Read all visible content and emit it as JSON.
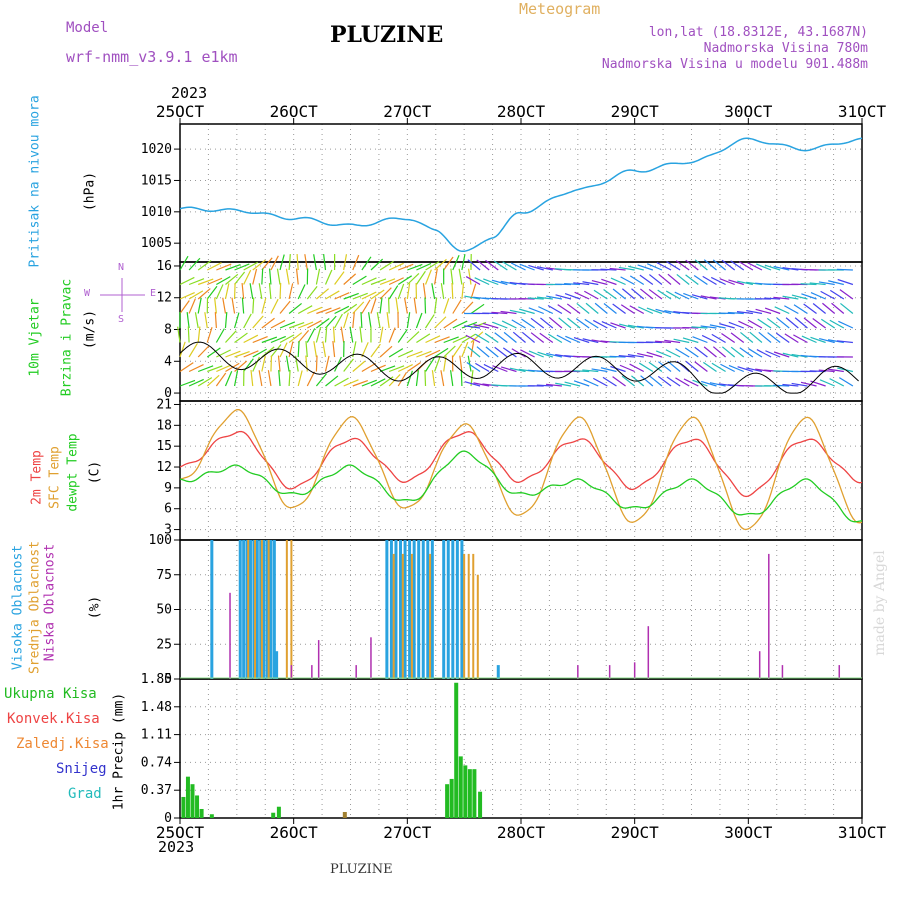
{
  "header": {
    "model_label": "Model",
    "model_name": "wrf-nmm_v3.9.1  e1km",
    "station": "PLUZINE",
    "meteogram_label": "Meteogram",
    "lonlat": "lon,lat (18.8312E, 43.1687N)",
    "elevation": "Nadmorska Visina 780m",
    "model_elevation": "Nadmorska Visina u modelu 901.488m",
    "year_top": "2023",
    "year_bottom": "2023",
    "footer_station": "PLUZINE",
    "credit": "made by Angel"
  },
  "colors": {
    "pressure": "#29a3e0",
    "temp2m": "#ee4444",
    "sfc_temp": "#e0a030",
    "dewpoint": "#22cc22",
    "high_cloud": "#29a3e0",
    "mid_cloud": "#e0a030",
    "low_cloud": "#b030b0",
    "total_precip": "#22bb22",
    "conv_precip": "#ee4444",
    "frozen_precip": "#ee8833",
    "snow": "#3333cc",
    "graupel": "#22bbbb"
  },
  "panel_labels": {
    "pressure": [
      "Pritisak na nivou mora",
      "(hPa)"
    ],
    "wind": [
      "10m Vjetar",
      "Brzina i Pravac",
      "(m/s)"
    ],
    "temp": [
      "2m Temp",
      "SFC Temp",
      "dewpt Temp",
      "(C)"
    ],
    "cloud": [
      "Visoka Oblacnost",
      "Srednja Oblacnost",
      "Niska Oblacnost",
      "(%)"
    ],
    "precip_legend": [
      "Ukupna Kisa",
      "Konvek.Kisa",
      "Zaledj.Kisa",
      "Snijeg",
      "Grad"
    ],
    "precip_unit": "1hr Precip (mm)",
    "compass": "N",
    "compass_dirs": [
      "W",
      "E",
      "S"
    ]
  },
  "chart_data": [
    {
      "type": "line",
      "title": "Pritisak na nivou mora",
      "ylabel": "(hPa)",
      "x": [
        "25OCT 00",
        "25OCT 12",
        "26OCT 00",
        "26OCT 12",
        "27OCT 00",
        "27OCT 06",
        "27OCT 12",
        "27OCT 18",
        "28OCT 00",
        "28OCT 12",
        "29OCT 00",
        "29OCT 12",
        "30OCT 00",
        "30OCT 12",
        "31OCT 00"
      ],
      "series": [
        {
          "values": [
            1010.5,
            1010.2,
            1009.0,
            1007.8,
            1009.0,
            1007.0,
            1003.5,
            1006.0,
            1010.0,
            1013.5,
            1016.5,
            1018.0,
            1021.5,
            1020.0,
            1021.5
          ]
        }
      ],
      "ylim": [
        1002,
        1024
      ],
      "yticks": [
        1005,
        1010,
        1015,
        1020
      ]
    },
    {
      "type": "scatter",
      "title": "10m Vjetar Brzina i Pravac",
      "ylabel": "(m/s)",
      "x": [
        "25OCT",
        "26OCT",
        "27OCT",
        "28OCT",
        "29OCT",
        "30OCT",
        "31OCT"
      ],
      "series": [
        {
          "values": [
            5.0,
            4.0,
            3.0,
            3.5,
            3.0,
            1.0,
            2.0
          ]
        }
      ],
      "ylim": [
        -1,
        16.5
      ],
      "yticks": [
        0,
        4,
        8,
        12,
        16
      ]
    },
    {
      "type": "line",
      "title": "2m Temp / SFC Temp / dewpt Temp",
      "ylabel": "(C)",
      "x": [
        "25OCT 00",
        "25OCT 12",
        "26OCT 00",
        "26OCT 12",
        "27OCT 00",
        "27OCT 12",
        "28OCT 00",
        "28OCT 12",
        "29OCT 00",
        "29OCT 12",
        "30OCT 00",
        "30OCT 12",
        "31OCT 00"
      ],
      "series": [
        {
          "name": "2m Temp",
          "values": [
            12,
            17,
            9,
            16,
            10,
            17,
            10,
            16,
            9,
            16,
            8,
            16,
            10
          ]
        },
        {
          "name": "SFC Temp",
          "values": [
            10,
            20,
            6,
            19,
            6,
            18,
            5,
            19,
            4,
            19,
            3,
            19,
            4
          ]
        },
        {
          "name": "dewpt Temp",
          "values": [
            10,
            12,
            8,
            12,
            7,
            14,
            8,
            10,
            6,
            10,
            5,
            10,
            4
          ]
        }
      ],
      "ylim": [
        1.5,
        21.5
      ],
      "yticks": [
        3,
        6,
        9,
        12,
        15,
        18,
        21
      ]
    },
    {
      "type": "bar",
      "title": "Visoka / Srednja / Niska Oblacnost",
      "ylabel": "(%)",
      "categories": [
        "25OCT",
        "26OCT",
        "27OCT",
        "28OCT",
        "29OCT",
        "30OCT",
        "31OCT"
      ],
      "series": [
        {
          "name": "Visoka Oblacnost",
          "values": [
            100,
            100,
            100,
            10,
            0,
            0,
            0
          ]
        },
        {
          "name": "Srednja Oblacnost",
          "values": [
            100,
            100,
            100,
            75,
            0,
            0,
            0
          ]
        },
        {
          "name": "Niska Oblacnost",
          "values": [
            62,
            28,
            30,
            10,
            10,
            90,
            10
          ]
        }
      ],
      "ylim": [
        0,
        100
      ],
      "yticks": [
        0,
        25,
        50,
        75,
        100
      ]
    },
    {
      "type": "bar",
      "title": "1hr Precip",
      "ylabel": "1hr Precip (mm)",
      "categories": [
        "25OCT",
        "26OCT",
        "27OCT",
        "28OCT",
        "29OCT",
        "30OCT",
        "31OCT"
      ],
      "series": [
        {
          "name": "Ukupna Kisa",
          "values": [
            0.55,
            0.15,
            0.05,
            1.8,
            0,
            0,
            0
          ]
        }
      ],
      "ylim": [
        0,
        1.85
      ],
      "yticks": [
        0,
        0.37,
        0.74,
        1.11,
        1.48,
        1.85
      ]
    }
  ],
  "x_axis": {
    "ticks": [
      "25OCT",
      "26OCT",
      "27OCT",
      "28OCT",
      "29OCT",
      "30OCT",
      "31OCT"
    ]
  }
}
